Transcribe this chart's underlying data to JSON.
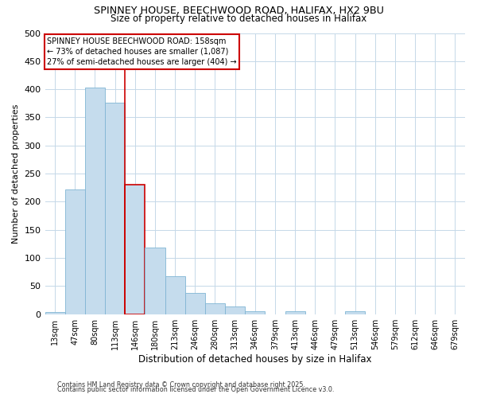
{
  "title1": "SPINNEY HOUSE, BEECHWOOD ROAD, HALIFAX, HX2 9BU",
  "title2": "Size of property relative to detached houses in Halifax",
  "xlabel": "Distribution of detached houses by size in Halifax",
  "ylabel": "Number of detached properties",
  "bin_labels": [
    "13sqm",
    "47sqm",
    "80sqm",
    "113sqm",
    "146sqm",
    "180sqm",
    "213sqm",
    "246sqm",
    "280sqm",
    "313sqm",
    "346sqm",
    "379sqm",
    "413sqm",
    "446sqm",
    "479sqm",
    "513sqm",
    "546sqm",
    "579sqm",
    "612sqm",
    "646sqm",
    "679sqm"
  ],
  "bar_heights": [
    4,
    222,
    403,
    376,
    230,
    119,
    67,
    38,
    19,
    14,
    5,
    0,
    5,
    0,
    0,
    5,
    0,
    0,
    0,
    0,
    0
  ],
  "bar_color": "#c5dced",
  "bar_edge_color": "#7fb5d4",
  "highlight_bar_index": 4,
  "highlight_bar_edge_color": "#cc0000",
  "vline_color": "#cc0000",
  "annotation_line1": "SPINNEY HOUSE BEECHWOOD ROAD: 158sqm",
  "annotation_line2": "← 73% of detached houses are smaller (1,087)",
  "annotation_line3": "27% of semi-detached houses are larger (404) →",
  "annotation_box_color": "#ffffff",
  "annotation_box_edge_color": "#cc0000",
  "ylim": [
    0,
    500
  ],
  "yticks": [
    0,
    50,
    100,
    150,
    200,
    250,
    300,
    350,
    400,
    450,
    500
  ],
  "footer1": "Contains HM Land Registry data © Crown copyright and database right 2025.",
  "footer2": "Contains public sector information licensed under the Open Government Licence v3.0.",
  "bg_color": "#ffffff",
  "grid_color": "#c5d8e8"
}
